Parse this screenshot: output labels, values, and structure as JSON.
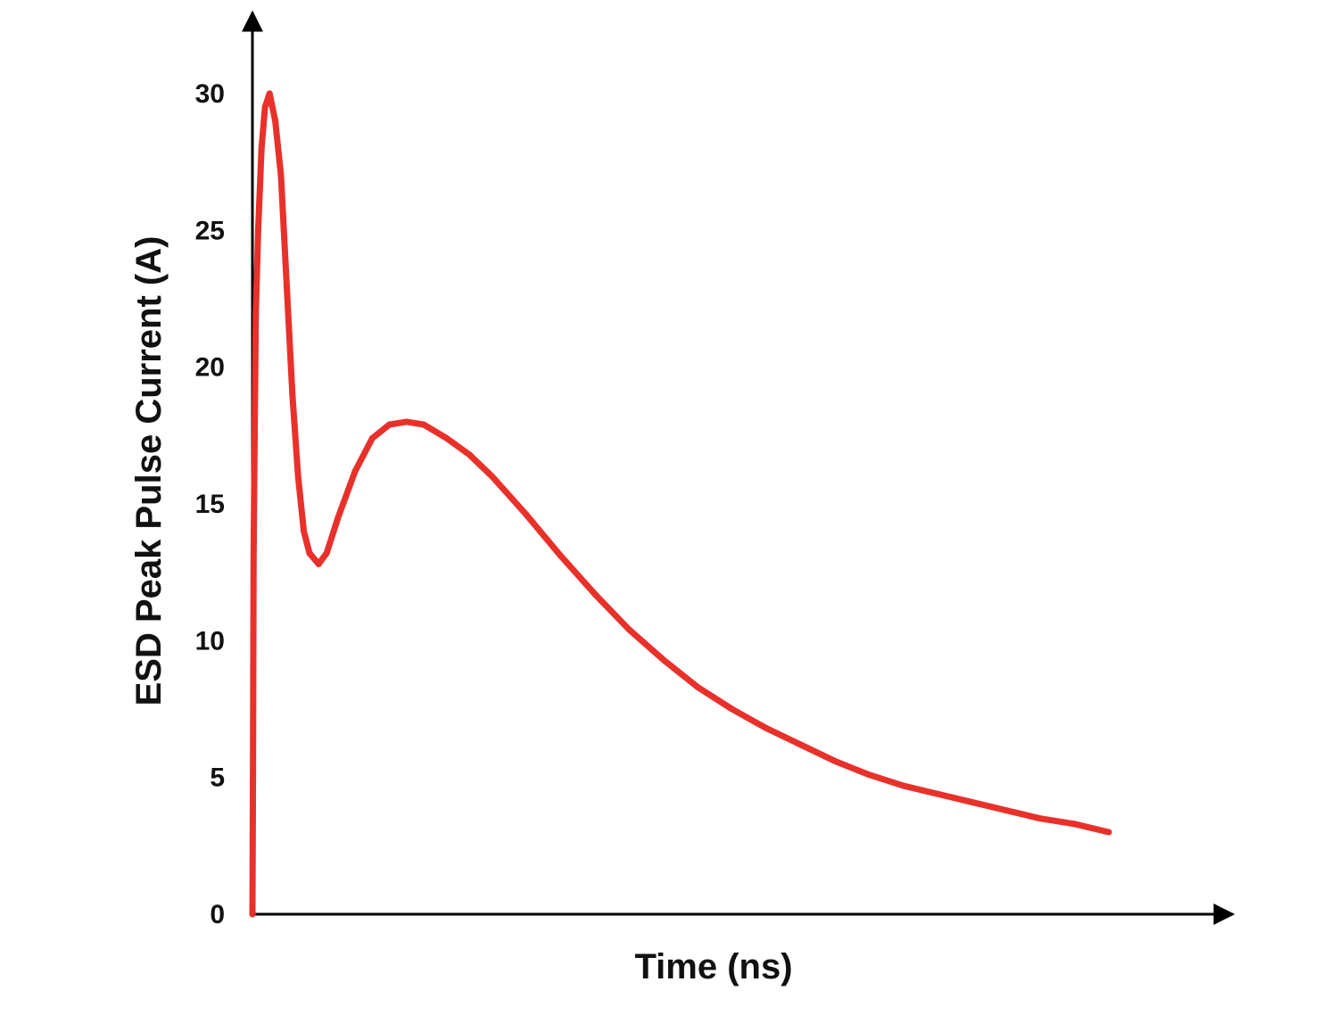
{
  "chart_data": {
    "type": "line",
    "title": "",
    "xlabel": "Time (ns)",
    "ylabel": "ESD Peak Pulse Current (A)",
    "ylim": [
      0,
      30
    ],
    "yticks": [
      "0",
      "5",
      "10",
      "15",
      "20",
      "25",
      "30"
    ],
    "grid": false,
    "legend": "none",
    "line_color": "#e8312a",
    "axis_color": "#000000",
    "series": [
      {
        "points": [
          [
            0.0,
            0
          ],
          [
            0.05,
            5
          ],
          [
            0.1,
            13
          ],
          [
            0.2,
            18
          ],
          [
            0.3,
            22
          ],
          [
            0.5,
            25
          ],
          [
            0.8,
            28
          ],
          [
            1.1,
            29.5
          ],
          [
            1.5,
            30
          ],
          [
            2.0,
            29
          ],
          [
            2.5,
            27
          ],
          [
            3.0,
            23
          ],
          [
            3.5,
            19
          ],
          [
            4.0,
            16
          ],
          [
            4.5,
            14
          ],
          [
            5.0,
            13.2
          ],
          [
            5.8,
            12.8
          ],
          [
            6.5,
            13.2
          ],
          [
            7.5,
            14.5
          ],
          [
            9.0,
            16.2
          ],
          [
            10.5,
            17.4
          ],
          [
            12.0,
            17.9
          ],
          [
            13.5,
            18.0
          ],
          [
            15.0,
            17.9
          ],
          [
            17.0,
            17.4
          ],
          [
            19.0,
            16.8
          ],
          [
            21.0,
            16.0
          ],
          [
            24.0,
            14.6
          ],
          [
            27.0,
            13.1
          ],
          [
            30.0,
            11.7
          ],
          [
            33.0,
            10.4
          ],
          [
            36.0,
            9.3
          ],
          [
            39.0,
            8.3
          ],
          [
            42.0,
            7.5
          ],
          [
            45.0,
            6.8
          ],
          [
            48.0,
            6.2
          ],
          [
            51.0,
            5.6
          ],
          [
            54.0,
            5.1
          ],
          [
            57.0,
            4.7
          ],
          [
            60.0,
            4.4
          ],
          [
            63.0,
            4.1
          ],
          [
            66.0,
            3.8
          ],
          [
            69.0,
            3.5
          ],
          [
            72.0,
            3.3
          ],
          [
            75.0,
            3.0
          ]
        ]
      }
    ]
  }
}
